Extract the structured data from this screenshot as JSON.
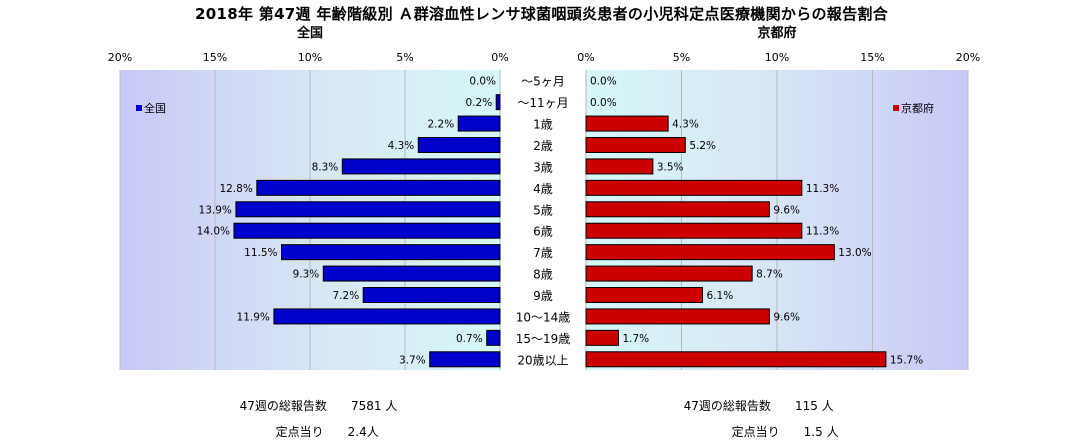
{
  "title": "2018年 第47週 年齢階級別 Ａ群溶血性レンサ球菌咽頭炎患者の小児科定点医療機関からの報告割合",
  "chart_data": {
    "type": "bar",
    "orientation": "horizontal",
    "layout": "back-to-back",
    "categories": [
      "～5ヶ月",
      "～11ヶ月",
      "1歳",
      "2歳",
      "3歳",
      "4歳",
      "5歳",
      "6歳",
      "7歳",
      "8歳",
      "9歳",
      "10～14歳",
      "15～19歳",
      "20歳以上"
    ],
    "series": [
      {
        "name": "全国",
        "color": "#0000cc",
        "direction": "left",
        "values": [
          0.0,
          0.2,
          2.2,
          4.3,
          8.3,
          12.8,
          13.9,
          14.0,
          11.5,
          9.3,
          7.2,
          11.9,
          0.7,
          3.7
        ]
      },
      {
        "name": "京都府",
        "color": "#cc0000",
        "direction": "right",
        "values": [
          0.0,
          0.0,
          4.3,
          5.2,
          3.5,
          11.3,
          9.6,
          11.3,
          13.0,
          8.7,
          6.1,
          9.6,
          1.7,
          15.7
        ]
      }
    ],
    "panels": [
      {
        "heading": "全国",
        "tick_labels": [
          "20%",
          "15%",
          "10%",
          "5%",
          "0%"
        ]
      },
      {
        "heading": "京都府",
        "tick_labels": [
          "0%",
          "5%",
          "10%",
          "15%",
          "20%"
        ]
      }
    ],
    "xlim": [
      0,
      20
    ],
    "value_suffix": "%",
    "grid": true,
    "legend": [
      "left-top",
      "right-top"
    ]
  },
  "footer": {
    "national": {
      "total_label": "47週の総報告数",
      "total_value": "7581 人",
      "per_label": "定点当り",
      "per_value": "2.4人"
    },
    "kyoto": {
      "total_label": "47週の総報告数",
      "total_value": "115 人",
      "per_label": "定点当り",
      "per_value": "1.5 人"
    }
  }
}
